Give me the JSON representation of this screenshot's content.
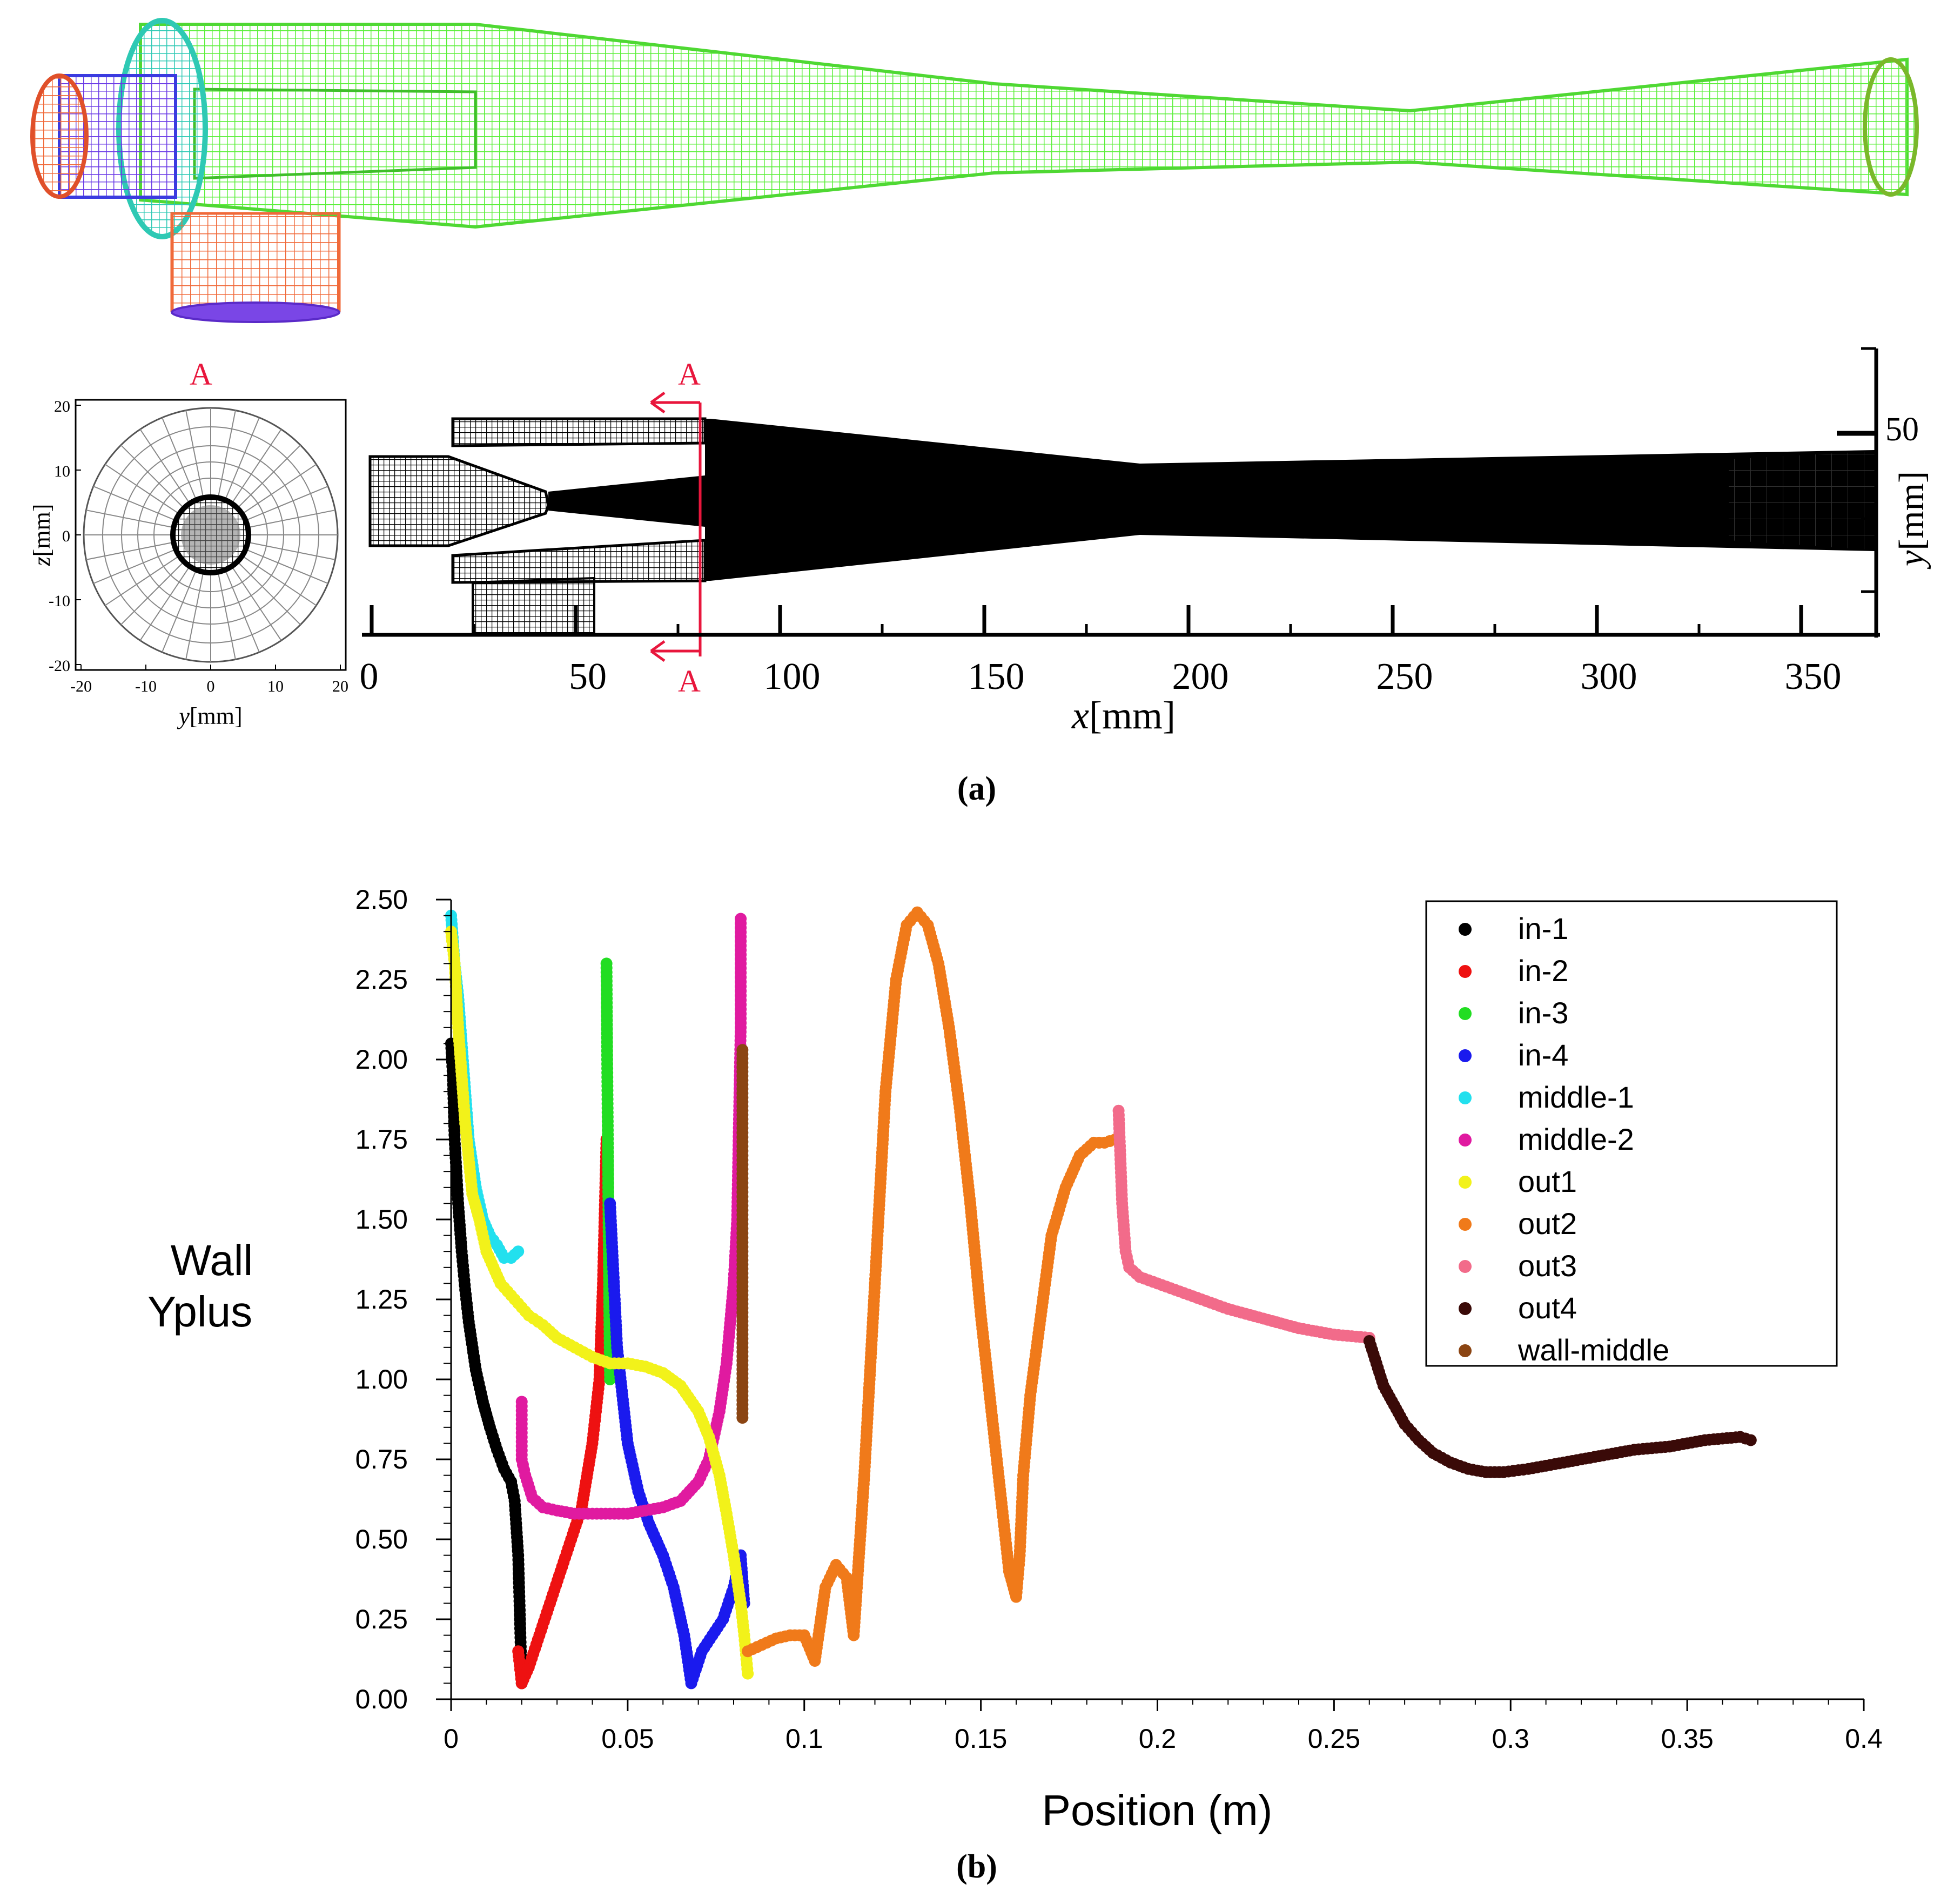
{
  "colors": {
    "mesh_green": "#5bef3a",
    "mesh_cyan": "#2ec9b4",
    "mesh_orange": "#f06a3a",
    "mesh_purple": "#7a46e6",
    "mesh_blue": "#3b3be0",
    "section_red": "#e8163c",
    "mesh_black": "#000000"
  },
  "panel_a": {
    "caption": "(a)",
    "section_marks": [
      "A",
      "A",
      "A"
    ],
    "cross_section": {
      "z_label_italic": "z",
      "z_label_unit": "[mm]",
      "y_label_italic": "y",
      "y_label_unit": "[mm]",
      "z_ticks": [
        "20",
        "10",
        "0",
        "-10",
        "-20"
      ],
      "y_ticks": [
        "-20",
        "-10",
        "0",
        "10",
        "20"
      ]
    },
    "side_view": {
      "x_label_italic": "x",
      "x_label_unit": "[mm]",
      "x_ticks": [
        "0",
        "50",
        "100",
        "150",
        "200",
        "250",
        "300",
        "350"
      ],
      "y_label_italic": "y",
      "y_label_unit": "[mm]",
      "y_tick": "50"
    }
  },
  "panel_b": {
    "caption": "(b)",
    "ylabel_line1": "Wall",
    "ylabel_line2": "Yplus",
    "xlabel": "Position (m)",
    "x_ticks": [
      "0",
      "0.05",
      "0.1",
      "0.15",
      "0.2",
      "0.25",
      "0.3",
      "0.35",
      "0.4"
    ],
    "y_ticks": [
      "0.00",
      "0.25",
      "0.50",
      "0.75",
      "1.00",
      "1.25",
      "1.50",
      "1.75",
      "2.00",
      "2.25",
      "2.50"
    ]
  },
  "chart_data": {
    "type": "scatter",
    "title": "",
    "xlabel": "Position (m)",
    "ylabel": "Wall Yplus",
    "xlim": [
      0,
      0.4
    ],
    "ylim": [
      0,
      2.5
    ],
    "legend_position": "top-right",
    "series": [
      {
        "name": "in-1",
        "color": "#000000",
        "x": [
          0.0,
          0.0005,
          0.001,
          0.002,
          0.003,
          0.004,
          0.005,
          0.007,
          0.009,
          0.011,
          0.013,
          0.015,
          0.017,
          0.018,
          0.019,
          0.0195,
          0.02
        ],
        "y": [
          2.05,
          1.95,
          1.75,
          1.55,
          1.4,
          1.28,
          1.18,
          1.03,
          0.93,
          0.85,
          0.78,
          0.72,
          0.68,
          0.62,
          0.45,
          0.25,
          0.05
        ]
      },
      {
        "name": "in-2",
        "color": "#ee1111",
        "x": [
          0.019,
          0.02,
          0.022,
          0.025,
          0.028,
          0.031,
          0.034,
          0.037,
          0.04,
          0.042,
          0.043,
          0.044
        ],
        "y": [
          0.15,
          0.05,
          0.1,
          0.2,
          0.3,
          0.4,
          0.5,
          0.6,
          0.8,
          1.0,
          1.3,
          1.75
        ]
      },
      {
        "name": "in-3",
        "color": "#22dd22",
        "x": [
          0.044,
          0.0442,
          0.0445,
          0.0448,
          0.045
        ],
        "y": [
          2.3,
          2.0,
          1.6,
          1.2,
          1.0
        ]
      },
      {
        "name": "in-4",
        "color": "#1a1aee",
        "x": [
          0.045,
          0.047,
          0.05,
          0.053,
          0.056,
          0.06,
          0.063,
          0.066,
          0.068,
          0.071,
          0.074,
          0.077,
          0.08,
          0.082,
          0.083
        ],
        "y": [
          1.55,
          1.1,
          0.8,
          0.65,
          0.55,
          0.45,
          0.35,
          0.2,
          0.05,
          0.15,
          0.2,
          0.25,
          0.35,
          0.45,
          0.3
        ]
      },
      {
        "name": "middle-1",
        "color": "#22e0ee",
        "x": [
          0.0,
          0.001,
          0.002,
          0.003,
          0.004,
          0.005,
          0.007,
          0.009,
          0.011,
          0.013,
          0.015,
          0.017,
          0.019
        ],
        "y": [
          2.45,
          2.3,
          2.2,
          2.05,
          1.9,
          1.75,
          1.6,
          1.5,
          1.45,
          1.42,
          1.38,
          1.38,
          1.4
        ]
      },
      {
        "name": "middle-2",
        "color": "#e01aa0",
        "x": [
          0.02,
          0.02,
          0.021,
          0.023,
          0.026,
          0.03,
          0.035,
          0.04,
          0.045,
          0.05,
          0.055,
          0.06,
          0.065,
          0.07,
          0.073,
          0.076,
          0.078,
          0.08,
          0.081,
          0.082,
          0.082,
          0.082
        ],
        "y": [
          0.93,
          0.75,
          0.7,
          0.63,
          0.6,
          0.59,
          0.58,
          0.58,
          0.58,
          0.58,
          0.59,
          0.6,
          0.62,
          0.68,
          0.75,
          0.9,
          1.05,
          1.3,
          1.5,
          2.1,
          2.3,
          2.44
        ]
      },
      {
        "name": "out1",
        "color": "#f2f21a",
        "x": [
          0.0,
          0.001,
          0.002,
          0.004,
          0.006,
          0.008,
          0.01,
          0.014,
          0.018,
          0.022,
          0.026,
          0.03,
          0.035,
          0.04,
          0.045,
          0.05,
          0.055,
          0.06,
          0.065,
          0.07,
          0.073,
          0.076,
          0.078,
          0.08,
          0.082,
          0.083,
          0.084
        ],
        "y": [
          2.4,
          2.3,
          2.1,
          1.8,
          1.58,
          1.5,
          1.4,
          1.3,
          1.25,
          1.2,
          1.17,
          1.13,
          1.1,
          1.07,
          1.05,
          1.05,
          1.04,
          1.02,
          0.98,
          0.9,
          0.82,
          0.7,
          0.58,
          0.45,
          0.3,
          0.2,
          0.08
        ]
      },
      {
        "name": "out2",
        "color": "#f07a1a",
        "x": [
          0.084,
          0.088,
          0.092,
          0.096,
          0.1,
          0.103,
          0.106,
          0.109,
          0.112,
          0.114,
          0.117,
          0.12,
          0.123,
          0.126,
          0.129,
          0.132,
          0.135,
          0.138,
          0.141,
          0.144,
          0.147,
          0.15,
          0.153,
          0.156,
          0.158,
          0.16,
          0.161,
          0.162,
          0.164,
          0.167,
          0.17,
          0.174,
          0.178,
          0.182,
          0.185,
          0.188
        ],
        "y": [
          0.15,
          0.17,
          0.19,
          0.2,
          0.2,
          0.12,
          0.35,
          0.42,
          0.38,
          0.2,
          0.7,
          1.3,
          1.9,
          2.25,
          2.42,
          2.46,
          2.42,
          2.3,
          2.1,
          1.85,
          1.55,
          1.2,
          0.9,
          0.6,
          0.4,
          0.32,
          0.45,
          0.7,
          0.95,
          1.2,
          1.45,
          1.6,
          1.7,
          1.74,
          1.74,
          1.75
        ]
      },
      {
        "name": "out3",
        "color": "#f26b8a",
        "x": [
          0.189,
          0.19,
          0.191,
          0.192,
          0.195,
          0.2,
          0.21,
          0.22,
          0.23,
          0.24,
          0.25,
          0.26
        ],
        "y": [
          1.84,
          1.55,
          1.4,
          1.35,
          1.32,
          1.3,
          1.26,
          1.22,
          1.19,
          1.16,
          1.14,
          1.13
        ]
      },
      {
        "name": "out4",
        "color": "#3a0a08",
        "x": [
          0.26,
          0.262,
          0.264,
          0.267,
          0.27,
          0.274,
          0.278,
          0.283,
          0.288,
          0.293,
          0.298,
          0.305,
          0.315,
          0.325,
          0.335,
          0.345,
          0.355,
          0.365,
          0.368
        ],
        "y": [
          1.12,
          1.05,
          0.98,
          0.92,
          0.86,
          0.81,
          0.77,
          0.74,
          0.72,
          0.71,
          0.71,
          0.72,
          0.74,
          0.76,
          0.78,
          0.79,
          0.81,
          0.82,
          0.81
        ]
      },
      {
        "name": "wall-middle",
        "color": "#8b4513",
        "x": [
          0.0825,
          0.0825,
          0.0825,
          0.0825,
          0.0825,
          0.0825
        ],
        "y": [
          0.88,
          1.1,
          1.4,
          1.6,
          1.8,
          2.03
        ]
      }
    ]
  }
}
